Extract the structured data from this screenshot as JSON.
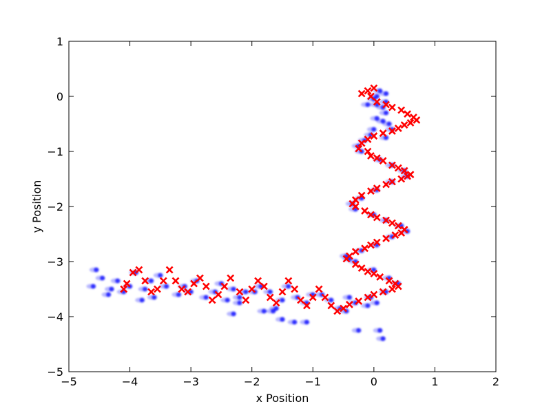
{
  "chart_data": {
    "type": "scatter",
    "title": "",
    "xlabel": "x Position",
    "ylabel": "y Position",
    "xlim": [
      -5,
      2
    ],
    "ylim": [
      -5,
      1
    ],
    "xticks": [
      -5,
      -4,
      -3,
      -2,
      -1,
      0,
      1,
      2
    ],
    "yticks": [
      1,
      0,
      -1,
      -2,
      -3,
      -4,
      -5
    ],
    "grid": false,
    "series": [
      {
        "marker": "dot-blur",
        "color": "#0000ff",
        "points": [
          [
            0.1,
            0.1
          ],
          [
            0.2,
            0.05
          ],
          [
            0.0,
            -0.05
          ],
          [
            -0.1,
            -0.15
          ],
          [
            0.05,
            -0.15
          ],
          [
            0.15,
            -0.2
          ],
          [
            0.2,
            -0.3
          ],
          [
            0.05,
            -0.4
          ],
          [
            0.15,
            -0.45
          ],
          [
            0.25,
            -0.5
          ],
          [
            0.0,
            -0.6
          ],
          [
            -0.05,
            -0.7
          ],
          [
            -0.15,
            -0.8
          ],
          [
            -0.25,
            -0.9
          ],
          [
            -0.2,
            -1.0
          ],
          [
            0.1,
            -1.15
          ],
          [
            0.3,
            -1.25
          ],
          [
            0.5,
            -1.35
          ],
          [
            0.55,
            -1.45
          ],
          [
            0.3,
            -1.55
          ],
          [
            0.05,
            -1.7
          ],
          [
            -0.2,
            -1.85
          ],
          [
            -0.35,
            -1.95
          ],
          [
            -0.3,
            -2.05
          ],
          [
            0.0,
            -2.15
          ],
          [
            0.2,
            -2.25
          ],
          [
            0.45,
            -2.35
          ],
          [
            0.55,
            -2.45
          ],
          [
            0.3,
            -2.55
          ],
          [
            0.05,
            -2.7
          ],
          [
            -0.2,
            -2.8
          ],
          [
            -0.45,
            -2.9
          ],
          [
            -0.3,
            -3.0
          ],
          [
            0.0,
            -3.15
          ],
          [
            0.25,
            -3.3
          ],
          [
            0.4,
            -3.4
          ],
          [
            0.2,
            -3.55
          ],
          [
            -0.05,
            -3.65
          ],
          [
            -0.3,
            -3.75
          ],
          [
            -0.55,
            -3.85
          ],
          [
            -0.7,
            -3.7
          ],
          [
            -0.85,
            -3.6
          ],
          [
            -1.0,
            -3.6
          ],
          [
            -1.1,
            -3.75
          ],
          [
            -1.25,
            -3.65
          ],
          [
            -1.4,
            -3.45
          ],
          [
            -1.5,
            -3.7
          ],
          [
            -1.6,
            -3.85
          ],
          [
            -1.65,
            -3.9
          ],
          [
            -1.5,
            -4.05
          ],
          [
            -1.3,
            -4.1
          ],
          [
            -1.1,
            -4.1
          ],
          [
            -1.7,
            -3.55
          ],
          [
            -1.85,
            -3.45
          ],
          [
            -2.1,
            -3.55
          ],
          [
            -2.2,
            -3.65
          ],
          [
            -2.3,
            -3.5
          ],
          [
            -2.5,
            -3.4
          ],
          [
            -2.6,
            -3.55
          ],
          [
            -2.75,
            -3.65
          ],
          [
            -2.9,
            -3.35
          ],
          [
            -3.1,
            -3.45
          ],
          [
            -3.2,
            -3.6
          ],
          [
            -3.4,
            -3.45
          ],
          [
            -3.5,
            -3.25
          ],
          [
            -3.65,
            -3.35
          ],
          [
            -3.75,
            -3.5
          ],
          [
            -3.9,
            -3.2
          ],
          [
            -4.0,
            -3.45
          ],
          [
            -4.2,
            -3.35
          ],
          [
            -4.3,
            -3.5
          ],
          [
            -4.45,
            -3.3
          ],
          [
            -4.55,
            -3.15
          ],
          [
            -4.6,
            -3.45
          ],
          [
            -4.35,
            -3.6
          ],
          [
            -4.1,
            -3.55
          ],
          [
            -3.8,
            -3.7
          ],
          [
            -3.6,
            -3.65
          ],
          [
            -3.0,
            -3.55
          ],
          [
            -2.4,
            -3.7
          ],
          [
            -2.2,
            -3.75
          ],
          [
            -2.3,
            -3.95
          ],
          [
            -1.95,
            -3.55
          ],
          [
            -1.8,
            -3.9
          ],
          [
            -0.4,
            -3.65
          ],
          [
            -0.45,
            -3.9
          ],
          [
            -0.25,
            -4.25
          ],
          [
            0.1,
            -4.25
          ],
          [
            0.15,
            -4.4
          ],
          [
            -0.4,
            -2.95
          ],
          [
            0.05,
            -3.75
          ],
          [
            -0.1,
            -3.8
          ],
          [
            0.2,
            -0.75
          ],
          [
            0.3,
            -0.6
          ],
          [
            0.05,
            0.0
          ],
          [
            0.2,
            -0.1
          ]
        ]
      },
      {
        "marker": "x",
        "color": "#ff0000",
        "points": [
          [
            -0.2,
            0.05
          ],
          [
            -0.1,
            0.1
          ],
          [
            0.0,
            0.15
          ],
          [
            -0.05,
            0.0
          ],
          [
            0.05,
            -0.1
          ],
          [
            0.2,
            -0.15
          ],
          [
            0.3,
            -0.2
          ],
          [
            0.45,
            -0.25
          ],
          [
            0.55,
            -0.32
          ],
          [
            0.65,
            -0.38
          ],
          [
            0.7,
            -0.43
          ],
          [
            0.6,
            -0.48
          ],
          [
            0.5,
            -0.52
          ],
          [
            0.4,
            -0.58
          ],
          [
            0.3,
            -0.63
          ],
          [
            0.15,
            -0.67
          ],
          [
            0.0,
            -0.72
          ],
          [
            -0.1,
            -0.78
          ],
          [
            -0.2,
            -0.85
          ],
          [
            -0.25,
            -0.95
          ],
          [
            -0.1,
            -1.0
          ],
          [
            -0.05,
            -1.08
          ],
          [
            0.05,
            -1.12
          ],
          [
            0.15,
            -1.17
          ],
          [
            0.3,
            -1.25
          ],
          [
            0.4,
            -1.3
          ],
          [
            0.5,
            -1.35
          ],
          [
            0.6,
            -1.42
          ],
          [
            0.55,
            -1.45
          ],
          [
            0.45,
            -1.5
          ],
          [
            0.3,
            -1.55
          ],
          [
            0.2,
            -1.6
          ],
          [
            0.05,
            -1.67
          ],
          [
            -0.05,
            -1.72
          ],
          [
            -0.2,
            -1.8
          ],
          [
            -0.3,
            -1.88
          ],
          [
            -0.35,
            -1.95
          ],
          [
            -0.3,
            -2.0
          ],
          [
            -0.15,
            -2.08
          ],
          [
            -0.05,
            -2.15
          ],
          [
            0.05,
            -2.2
          ],
          [
            0.2,
            -2.25
          ],
          [
            0.3,
            -2.3
          ],
          [
            0.4,
            -2.35
          ],
          [
            0.5,
            -2.42
          ],
          [
            0.45,
            -2.48
          ],
          [
            0.35,
            -2.52
          ],
          [
            0.2,
            -2.58
          ],
          [
            0.05,
            -2.65
          ],
          [
            -0.05,
            -2.7
          ],
          [
            -0.15,
            -2.76
          ],
          [
            -0.3,
            -2.82
          ],
          [
            -0.4,
            -2.9
          ],
          [
            -0.45,
            -2.95
          ],
          [
            -0.3,
            -3.05
          ],
          [
            -0.2,
            -3.12
          ],
          [
            -0.1,
            -3.18
          ],
          [
            0.0,
            -3.22
          ],
          [
            0.1,
            -3.28
          ],
          [
            0.25,
            -3.35
          ],
          [
            0.35,
            -3.4
          ],
          [
            0.4,
            -3.45
          ],
          [
            0.3,
            -3.5
          ],
          [
            0.15,
            -3.55
          ],
          [
            0.0,
            -3.6
          ],
          [
            -0.1,
            -3.65
          ],
          [
            -0.25,
            -3.72
          ],
          [
            -0.4,
            -3.78
          ],
          [
            -0.5,
            -3.85
          ],
          [
            -0.6,
            -3.9
          ],
          [
            -0.7,
            -3.8
          ],
          [
            -0.8,
            -3.65
          ],
          [
            -0.9,
            -3.5
          ],
          [
            -1.0,
            -3.65
          ],
          [
            -1.1,
            -3.8
          ],
          [
            -1.2,
            -3.7
          ],
          [
            -1.3,
            -3.5
          ],
          [
            -1.4,
            -3.35
          ],
          [
            -1.5,
            -3.55
          ],
          [
            -1.6,
            -3.75
          ],
          [
            -1.7,
            -3.65
          ],
          [
            -1.8,
            -3.45
          ],
          [
            -1.9,
            -3.35
          ],
          [
            -2.0,
            -3.5
          ],
          [
            -2.1,
            -3.7
          ],
          [
            -2.2,
            -3.55
          ],
          [
            -2.35,
            -3.3
          ],
          [
            -2.45,
            -3.45
          ],
          [
            -2.55,
            -3.6
          ],
          [
            -2.65,
            -3.7
          ],
          [
            -2.75,
            -3.45
          ],
          [
            -2.85,
            -3.3
          ],
          [
            -2.95,
            -3.4
          ],
          [
            -3.05,
            -3.55
          ],
          [
            -3.15,
            -3.5
          ],
          [
            -3.25,
            -3.35
          ],
          [
            -3.35,
            -3.15
          ],
          [
            -3.45,
            -3.35
          ],
          [
            -3.55,
            -3.5
          ],
          [
            -3.65,
            -3.55
          ],
          [
            -3.75,
            -3.35
          ],
          [
            -3.85,
            -3.15
          ],
          [
            -3.95,
            -3.2
          ],
          [
            -4.05,
            -3.4
          ],
          [
            -4.1,
            -3.5
          ]
        ]
      }
    ]
  }
}
